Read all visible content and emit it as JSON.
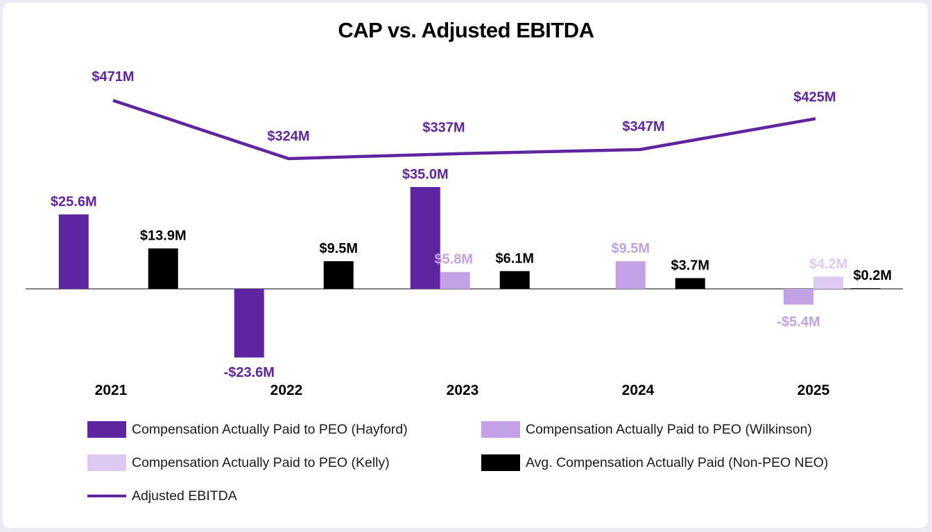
{
  "chart_data": {
    "type": "bar",
    "title": "CAP vs. Adjusted EBITDA",
    "categories": [
      "2021",
      "2022",
      "2023",
      "2024",
      "2025"
    ],
    "series": [
      {
        "name": "Compensation Actually Paid to PEO (Hayford)",
        "kind": "bar",
        "color": "#5f24a0",
        "values": [
          25.6,
          -23.6,
          35.0,
          null,
          null
        ],
        "labels": [
          "$25.6M",
          "-$23.6M",
          "$35.0M",
          "",
          ""
        ]
      },
      {
        "name": "Compensation Actually Paid to PEO (Wilkinson)",
        "kind": "bar",
        "color": "#c2a2e4",
        "values": [
          null,
          null,
          5.8,
          9.5,
          -5.4
        ],
        "labels": [
          "",
          "",
          "$5.8M",
          "$9.5M",
          "-$5.4M"
        ]
      },
      {
        "name": "Compensation Actually Paid to PEO (Kelly)",
        "kind": "bar",
        "color": "#ddc9f2",
        "values": [
          null,
          null,
          null,
          null,
          4.2
        ],
        "labels": [
          "",
          "",
          "",
          "",
          "$4.2M"
        ]
      },
      {
        "name": "Avg. Compensation Actually Paid (Non-PEO NEO)",
        "kind": "bar",
        "color": "#000000",
        "values": [
          13.9,
          9.5,
          6.1,
          3.7,
          0.2
        ],
        "labels": [
          "$13.9M",
          "$9.5M",
          "$6.1M",
          "$3.7M",
          "$0.2M"
        ]
      },
      {
        "name": "Adjusted EBITDA",
        "kind": "line",
        "color": "#5f24a0",
        "values": [
          471,
          324,
          337,
          347,
          425
        ],
        "labels": [
          "$471M",
          "$324M",
          "$337M",
          "$347M",
          "$425M"
        ]
      }
    ],
    "legend_position": "bottom",
    "grid": false,
    "ylabel": "",
    "xlabel": ""
  },
  "legend": [
    {
      "label": "Compensation Actually Paid to PEO (Hayford)",
      "color": "#5f24a0",
      "kind": "bar"
    },
    {
      "label": "Compensation Actually Paid to PEO (Wilkinson)",
      "color": "#c2a2e4",
      "kind": "bar"
    },
    {
      "label": "Compensation Actually Paid to PEO (Kelly)",
      "color": "#ddc9f2",
      "kind": "bar"
    },
    {
      "label": "Avg. Compensation Actually Paid (Non-PEO NEO)",
      "color": "#000000",
      "kind": "bar"
    },
    {
      "label": "Adjusted EBITDA",
      "color": "#5f24a0",
      "kind": "line"
    }
  ]
}
